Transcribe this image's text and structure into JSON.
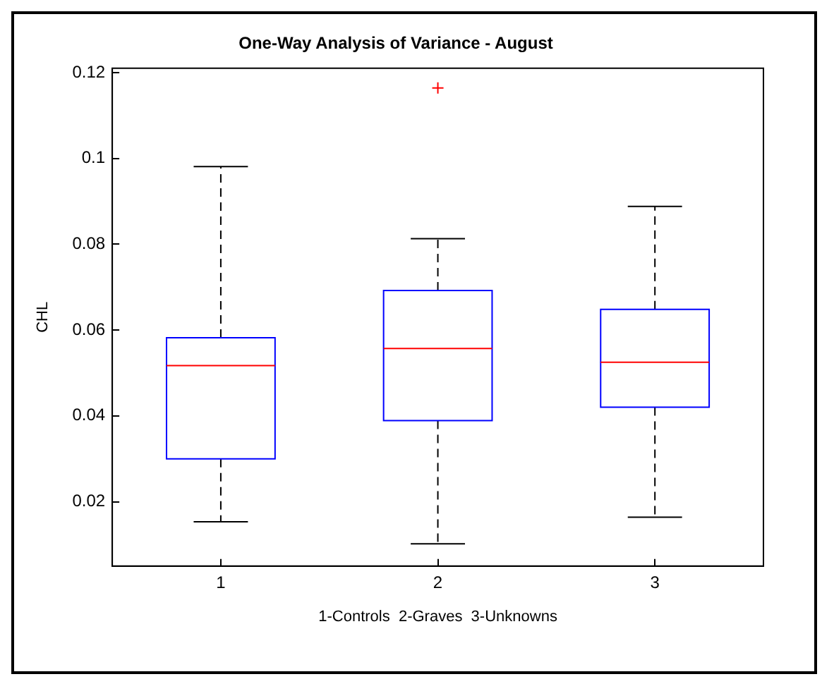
{
  "chart_data": {
    "type": "box",
    "title": "One-Way Analysis of Variance - August",
    "xlabel": "1-Controls  2-Graves  3-Unknowns",
    "ylabel": "CHL",
    "categories": [
      "1",
      "2",
      "3"
    ],
    "series": [
      {
        "color": "#0000ff",
        "boxes": [
          {
            "low": 0.0153,
            "q1": 0.03,
            "median": 0.0517,
            "q3": 0.0582,
            "high": 0.0981
          },
          {
            "low": 0.0102,
            "q1": 0.0389,
            "median": 0.0557,
            "q3": 0.0692,
            "high": 0.0813,
            "outliers": [
              0.1164
            ]
          },
          {
            "low": 0.0164,
            "q1": 0.042,
            "median": 0.0525,
            "q3": 0.0648,
            "high": 0.0888
          }
        ]
      }
    ],
    "ylim": [
      0.005,
      0.121
    ],
    "yticks": [
      0.02,
      0.04,
      0.06,
      0.08,
      0.1,
      0.12
    ],
    "grid": false,
    "legend": false
  }
}
